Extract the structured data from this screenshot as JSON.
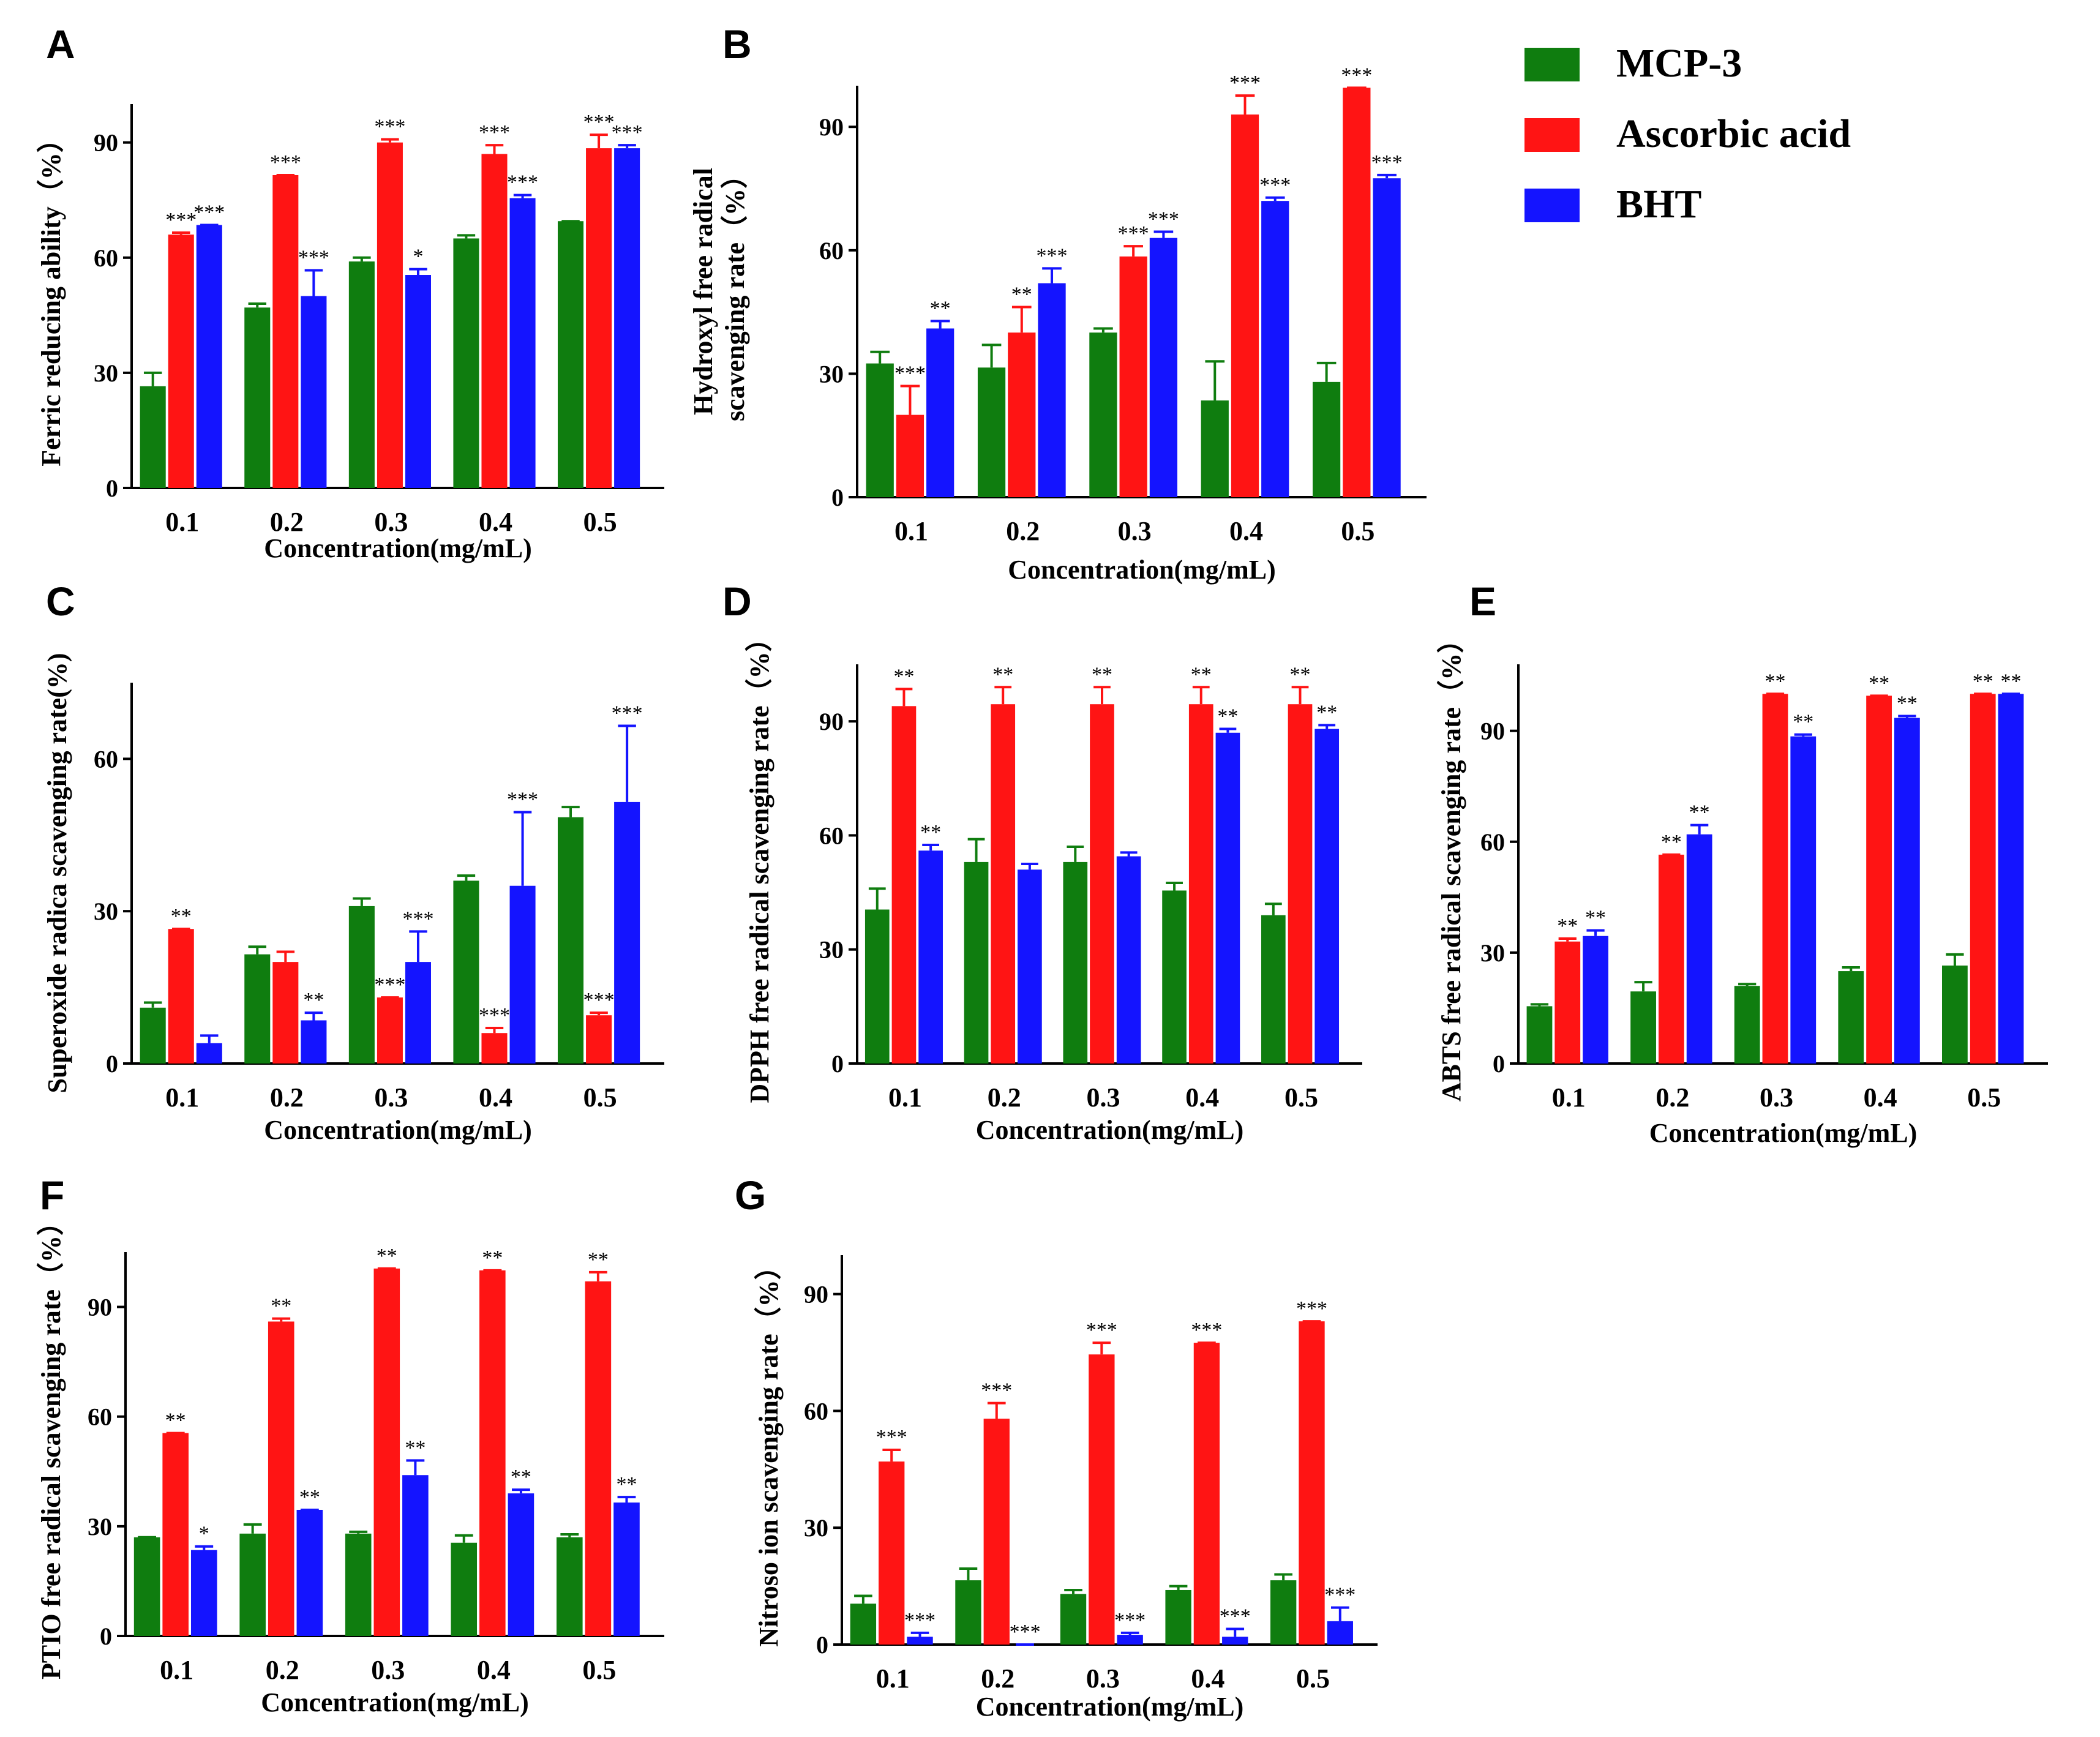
{
  "figure": {
    "legend": [
      {
        "name": "MCP-3",
        "color": "#0f7d0f"
      },
      {
        "name": "Ascorbic acid",
        "color": "#ff1414"
      },
      {
        "name": "BHT",
        "color": "#1414ff"
      }
    ]
  },
  "chart_data": [
    {
      "panel": "A",
      "type": "bar",
      "categories": [
        "0.1",
        "0.2",
        "0.3",
        "0.4",
        "0.5"
      ],
      "xlabel": "Concentration(mg/mL)",
      "ylabel": "Ferric reducing ability（%）",
      "ylim": [
        0,
        100
      ],
      "yticks": [
        0,
        30,
        60,
        90
      ],
      "series": [
        {
          "name": "MCP-3",
          "values": [
            26.5,
            47,
            59,
            65,
            69.5
          ],
          "errors": [
            3.5,
            1,
            1,
            0.8,
            0
          ],
          "sig": [
            "",
            "",
            "",
            "",
            ""
          ]
        },
        {
          "name": "Ascorbic acid",
          "values": [
            66,
            81.5,
            90,
            87,
            88.5
          ],
          "errors": [
            0.5,
            0,
            0.8,
            2.3,
            3.5
          ],
          "sig": [
            "***",
            "***",
            "***",
            "***",
            "***"
          ]
        },
        {
          "name": "BHT",
          "values": [
            68.5,
            50,
            55.5,
            75.5,
            88.5
          ],
          "errors": [
            0,
            6.7,
            1.5,
            0.8,
            0.8
          ],
          "sig": [
            "***",
            "***",
            "*",
            "***",
            "***"
          ]
        }
      ]
    },
    {
      "panel": "B",
      "type": "bar",
      "categories": [
        "0.1",
        "0.2",
        "0.3",
        "0.4",
        "0.5"
      ],
      "xlabel": "Concentration(mg/mL)",
      "ylabel": [
        "Hydroxyl free radical",
        "scavenging rate（%）"
      ],
      "ylim": [
        0,
        100
      ],
      "yticks": [
        0,
        30,
        60,
        90
      ],
      "series": [
        {
          "name": "MCP-3",
          "values": [
            32.5,
            31.5,
            40,
            23.5,
            28
          ],
          "errors": [
            2.8,
            5.5,
            1,
            9.5,
            4.6
          ],
          "sig": [
            "",
            "",
            "",
            "",
            ""
          ]
        },
        {
          "name": "Ascorbic acid",
          "values": [
            20,
            40,
            58.5,
            93,
            99.5
          ],
          "errors": [
            7,
            6.2,
            2.5,
            4.6,
            0
          ],
          "sig": [
            "***",
            "**",
            "***",
            "***",
            "***"
          ]
        },
        {
          "name": "BHT",
          "values": [
            41,
            52,
            63,
            72,
            77.5
          ],
          "errors": [
            1.8,
            3.6,
            1.5,
            0.8,
            0.8
          ],
          "sig": [
            "**",
            "***",
            "***",
            "***",
            "***"
          ]
        }
      ]
    },
    {
      "panel": "C",
      "type": "bar",
      "categories": [
        "0.1",
        "0.2",
        "0.3",
        "0.4",
        "0.5"
      ],
      "xlabel": "Concentration(mg/mL)",
      "ylabel": "Superoxide radica scavenging rate(%)",
      "ylim": [
        0,
        75
      ],
      "yticks": [
        0,
        30,
        60
      ],
      "series": [
        {
          "name": "MCP-3",
          "values": [
            11,
            21.5,
            31,
            36,
            48.5
          ],
          "errors": [
            1,
            1.5,
            1.5,
            1,
            2
          ],
          "sig": [
            "",
            "",
            "",
            "",
            ""
          ]
        },
        {
          "name": "Ascorbic acid",
          "values": [
            26.5,
            20,
            13,
            6,
            9.5
          ],
          "errors": [
            0,
            2,
            0,
            1,
            0.5
          ],
          "sig": [
            "**",
            "",
            "***",
            "***",
            "***"
          ]
        },
        {
          "name": "BHT",
          "values": [
            4,
            8.5,
            20,
            35,
            51.5
          ],
          "errors": [
            1.5,
            1.5,
            6,
            14.5,
            15
          ],
          "sig": [
            "",
            "**",
            "***",
            "***",
            "***"
          ]
        }
      ]
    },
    {
      "panel": "D",
      "type": "bar",
      "categories": [
        "0.1",
        "0.2",
        "0.3",
        "0.4",
        "0.5"
      ],
      "xlabel": "Concentration(mg/mL)",
      "ylabel": "DPPH free radical scavenging rate（%）",
      "ylim": [
        0,
        105
      ],
      "yticks": [
        0,
        30,
        60,
        90
      ],
      "series": [
        {
          "name": "MCP-3",
          "values": [
            40.5,
            53,
            53,
            45.5,
            39
          ],
          "errors": [
            5.5,
            6,
            4,
            2,
            3
          ],
          "sig": [
            "",
            "",
            "",
            "",
            ""
          ]
        },
        {
          "name": "Ascorbic acid",
          "values": [
            94,
            94.5,
            94.5,
            94.5,
            94.5
          ],
          "errors": [
            4.5,
            4.5,
            4.5,
            4.5,
            4.5
          ],
          "sig": [
            "**",
            "**",
            "**",
            "**",
            "**"
          ]
        },
        {
          "name": "BHT",
          "values": [
            56,
            51,
            54.5,
            87,
            88
          ],
          "errors": [
            1.5,
            1.5,
            1,
            1,
            1
          ],
          "sig": [
            "**",
            "",
            "",
            "**",
            "**"
          ]
        }
      ]
    },
    {
      "panel": "E",
      "type": "bar",
      "categories": [
        "0.1",
        "0.2",
        "0.3",
        "0.4",
        "0.5"
      ],
      "xlabel": "Concentration(mg/mL)",
      "ylabel": "ABTS free radical scavenging rate（%）",
      "ylim": [
        0,
        108
      ],
      "yticks": [
        0,
        30,
        60,
        90
      ],
      "series": [
        {
          "name": "MCP-3",
          "values": [
            15.5,
            19.5,
            21,
            25,
            26.5
          ],
          "errors": [
            0.5,
            2.5,
            0.5,
            1,
            3
          ],
          "sig": [
            "",
            "",
            "",
            "",
            ""
          ]
        },
        {
          "name": "Ascorbic acid",
          "values": [
            33,
            56.5,
            100,
            99.5,
            100
          ],
          "errors": [
            0.8,
            0,
            0,
            0,
            0
          ],
          "sig": [
            "**",
            "**",
            "**",
            "**",
            "**"
          ]
        },
        {
          "name": "BHT",
          "values": [
            34.5,
            62,
            88.5,
            93.5,
            100
          ],
          "errors": [
            1.5,
            2.5,
            0.5,
            0.5,
            0
          ],
          "sig": [
            "**",
            "**",
            "**",
            "**",
            "**"
          ]
        }
      ]
    },
    {
      "panel": "F",
      "type": "bar",
      "categories": [
        "0.1",
        "0.2",
        "0.3",
        "0.4",
        "0.5"
      ],
      "xlabel": "Concentration(mg/mL)",
      "ylabel": "PTIO free radical scavenging rate（%）",
      "ylim": [
        0,
        105
      ],
      "yticks": [
        0,
        30,
        60,
        90
      ],
      "series": [
        {
          "name": "MCP-3",
          "values": [
            27,
            28,
            28,
            25.5,
            27
          ],
          "errors": [
            0,
            2.5,
            0.5,
            2,
            0.8
          ],
          "sig": [
            "",
            "",
            "",
            "",
            ""
          ]
        },
        {
          "name": "Ascorbic acid",
          "values": [
            55.5,
            86,
            100.5,
            100,
            97
          ],
          "errors": [
            0,
            0.8,
            0,
            0,
            2.5
          ],
          "sig": [
            "**",
            "**",
            "**",
            "**",
            "**"
          ]
        },
        {
          "name": "BHT",
          "values": [
            23.5,
            34.5,
            44,
            39,
            36.5
          ],
          "errors": [
            1,
            0,
            4,
            1,
            1.5
          ],
          "sig": [
            "*",
            "**",
            "**",
            "**",
            "**"
          ]
        }
      ]
    },
    {
      "panel": "G",
      "type": "bar",
      "categories": [
        "0.1",
        "0.2",
        "0.3",
        "0.4",
        "0.5"
      ],
      "xlabel": "Concentration(mg/mL)",
      "ylabel": "Nitroso ion scavenging rate（%）",
      "ylim": [
        0,
        100
      ],
      "yticks": [
        0,
        30,
        60,
        90
      ],
      "series": [
        {
          "name": "MCP-3",
          "values": [
            10.5,
            16.5,
            13,
            14,
            16.5
          ],
          "errors": [
            2,
            3,
            1,
            1,
            1.5
          ],
          "sig": [
            "",
            "",
            "",
            "",
            ""
          ]
        },
        {
          "name": "Ascorbic acid",
          "values": [
            47,
            58,
            74.5,
            77.5,
            83
          ],
          "errors": [
            3,
            4,
            3,
            0,
            0
          ],
          "sig": [
            "***",
            "***",
            "***",
            "***",
            "***"
          ]
        },
        {
          "name": "BHT",
          "values": [
            2,
            0,
            2.5,
            2,
            6
          ],
          "errors": [
            1,
            0,
            0.5,
            2,
            3.5
          ],
          "sig": [
            "***",
            "***",
            "***",
            "***",
            "***"
          ]
        }
      ]
    }
  ]
}
